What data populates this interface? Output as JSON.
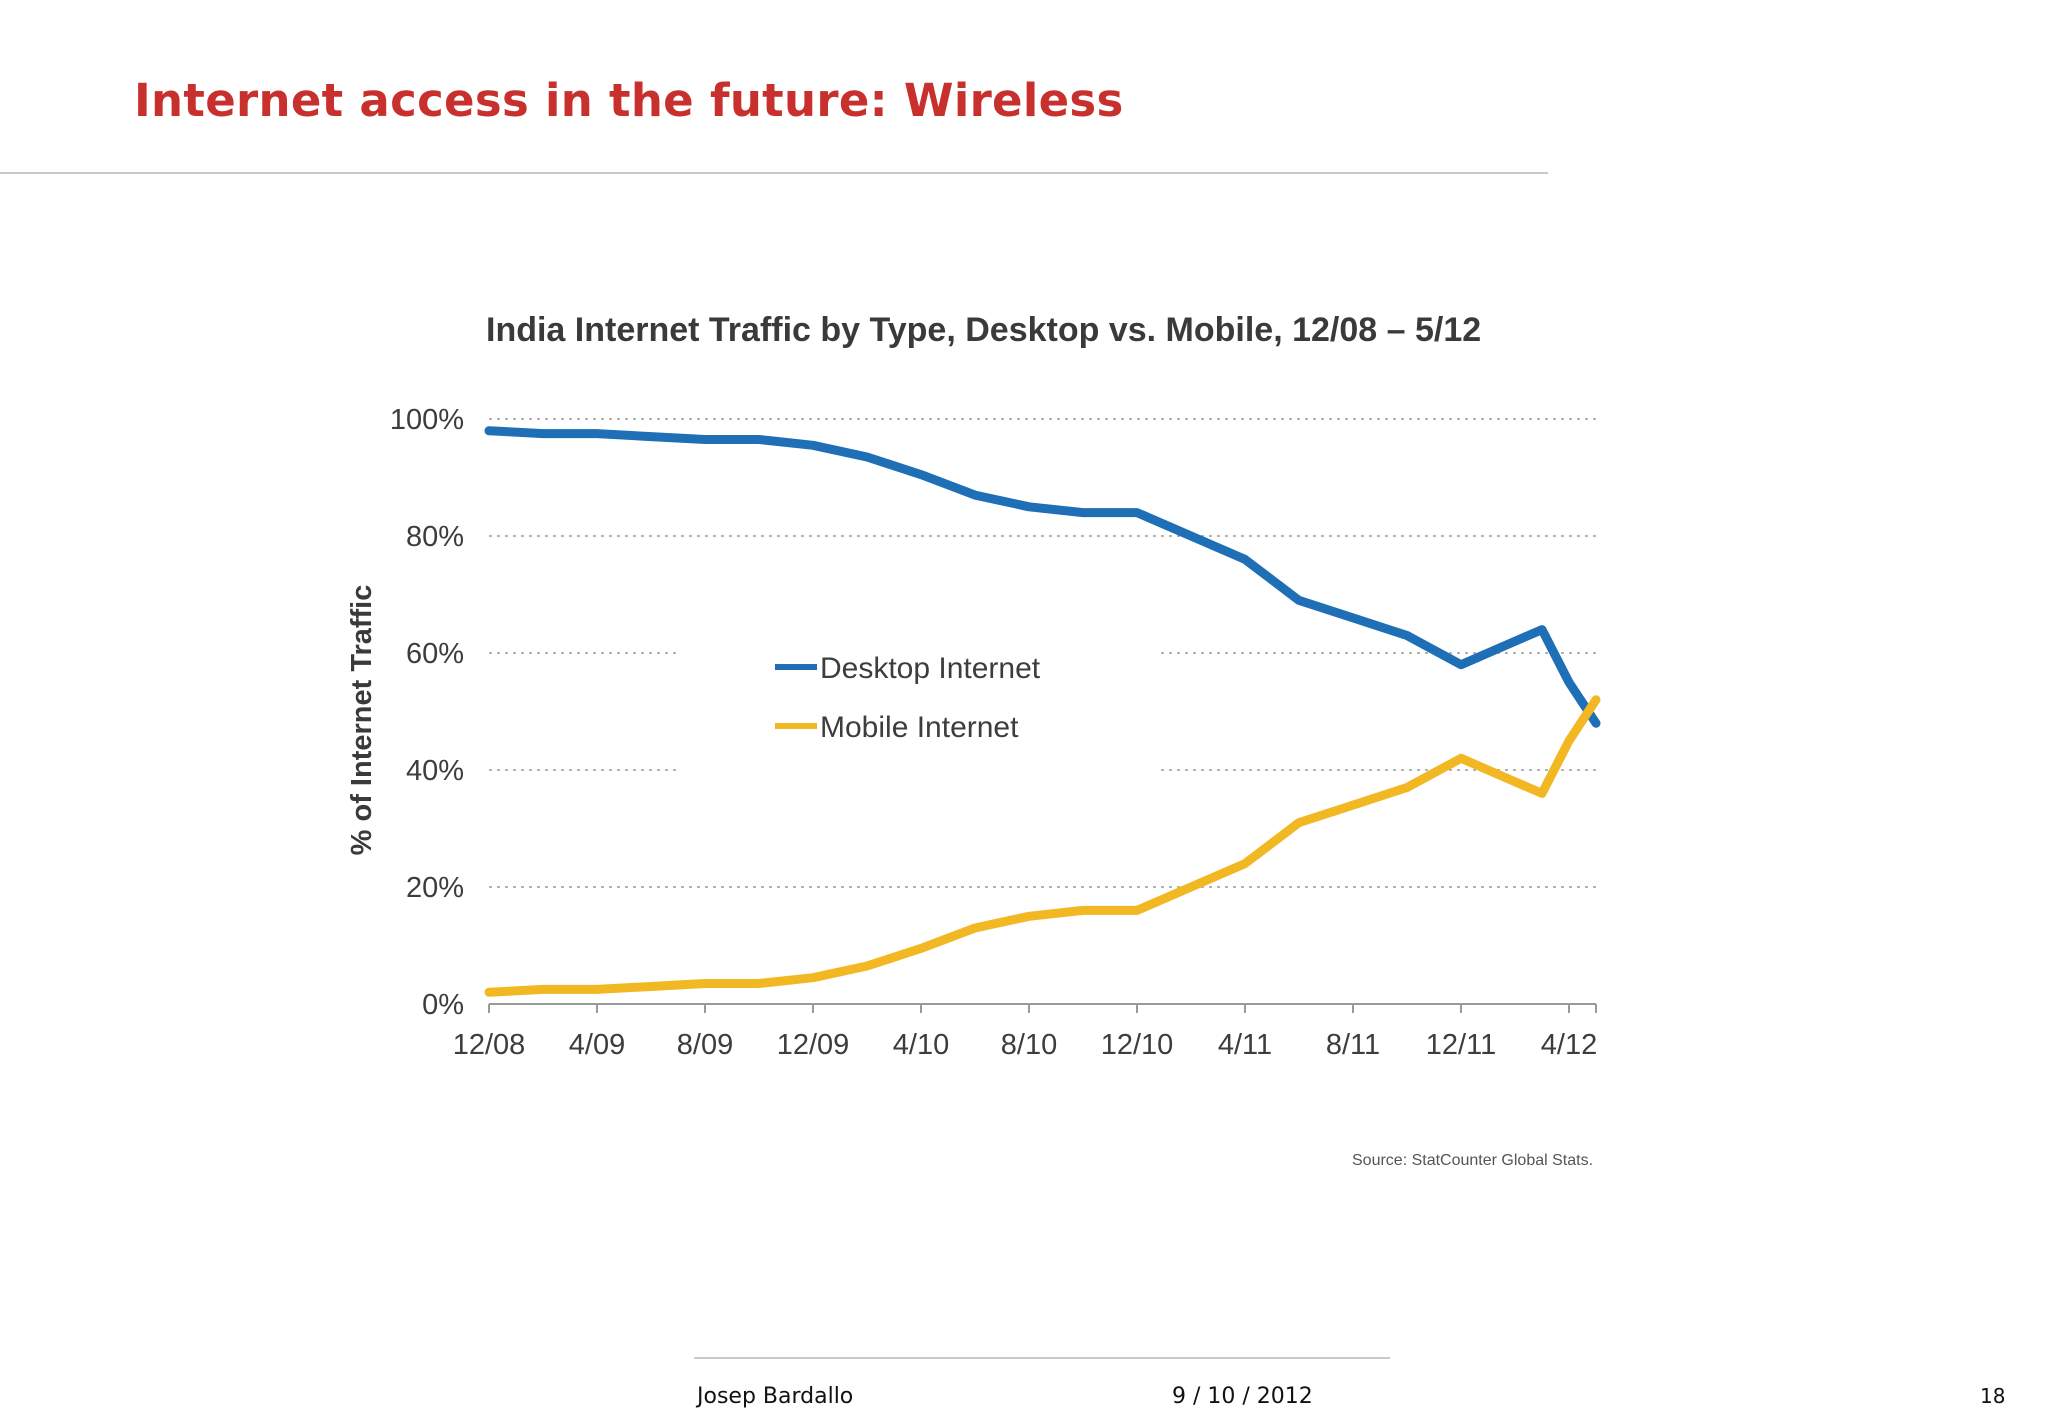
{
  "slide": {
    "title": "Internet access in the future: Wireless"
  },
  "footer": {
    "author": "Josep Bardallo",
    "date": "9 / 10 / 2012",
    "page_number": "18"
  },
  "chart_data": {
    "type": "line",
    "title": "India Internet Traffic by Type, Desktop vs. Mobile, 12/08 – 5/12",
    "ylabel": "% of Internet Traffic",
    "xlabel": "",
    "ylim": [
      0,
      100
    ],
    "y_ticks": [
      "0%",
      "20%",
      "40%",
      "60%",
      "80%",
      "100%"
    ],
    "x_ticks": [
      "12/08",
      "4/09",
      "8/09",
      "12/09",
      "4/10",
      "8/10",
      "12/10",
      "4/11",
      "8/11",
      "12/11",
      "4/12"
    ],
    "xlim": [
      "2008-12",
      "2012-05"
    ],
    "grid": "horizontal dotted",
    "legend_position": "center",
    "source": "Source: StatCounter Global Stats.",
    "series": [
      {
        "name": "Desktop Internet",
        "color": "#1f6fb7",
        "x": [
          "2008-12",
          "2009-02",
          "2009-04",
          "2009-06",
          "2009-08",
          "2009-10",
          "2009-12",
          "2010-02",
          "2010-04",
          "2010-06",
          "2010-08",
          "2010-10",
          "2010-12",
          "2011-02",
          "2011-04",
          "2011-06",
          "2011-08",
          "2011-10",
          "2011-12",
          "2012-02",
          "2012-03",
          "2012-04",
          "2012-05"
        ],
        "values": [
          98,
          97.5,
          97.5,
          97,
          96.5,
          96.5,
          95.5,
          93.5,
          90.5,
          87,
          85,
          84,
          84,
          80,
          76,
          69,
          66,
          63,
          58,
          62,
          64,
          55,
          48
        ]
      },
      {
        "name": "Mobile Internet",
        "color": "#f2b824",
        "x": [
          "2008-12",
          "2009-02",
          "2009-04",
          "2009-06",
          "2009-08",
          "2009-10",
          "2009-12",
          "2010-02",
          "2010-04",
          "2010-06",
          "2010-08",
          "2010-10",
          "2010-12",
          "2011-02",
          "2011-04",
          "2011-06",
          "2011-08",
          "2011-10",
          "2011-12",
          "2012-02",
          "2012-03",
          "2012-04",
          "2012-05"
        ],
        "values": [
          2,
          2.5,
          2.5,
          3,
          3.5,
          3.5,
          4.5,
          6.5,
          9.5,
          13,
          15,
          16,
          16,
          20,
          24,
          31,
          34,
          37,
          42,
          38,
          36,
          45,
          52
        ]
      }
    ]
  }
}
